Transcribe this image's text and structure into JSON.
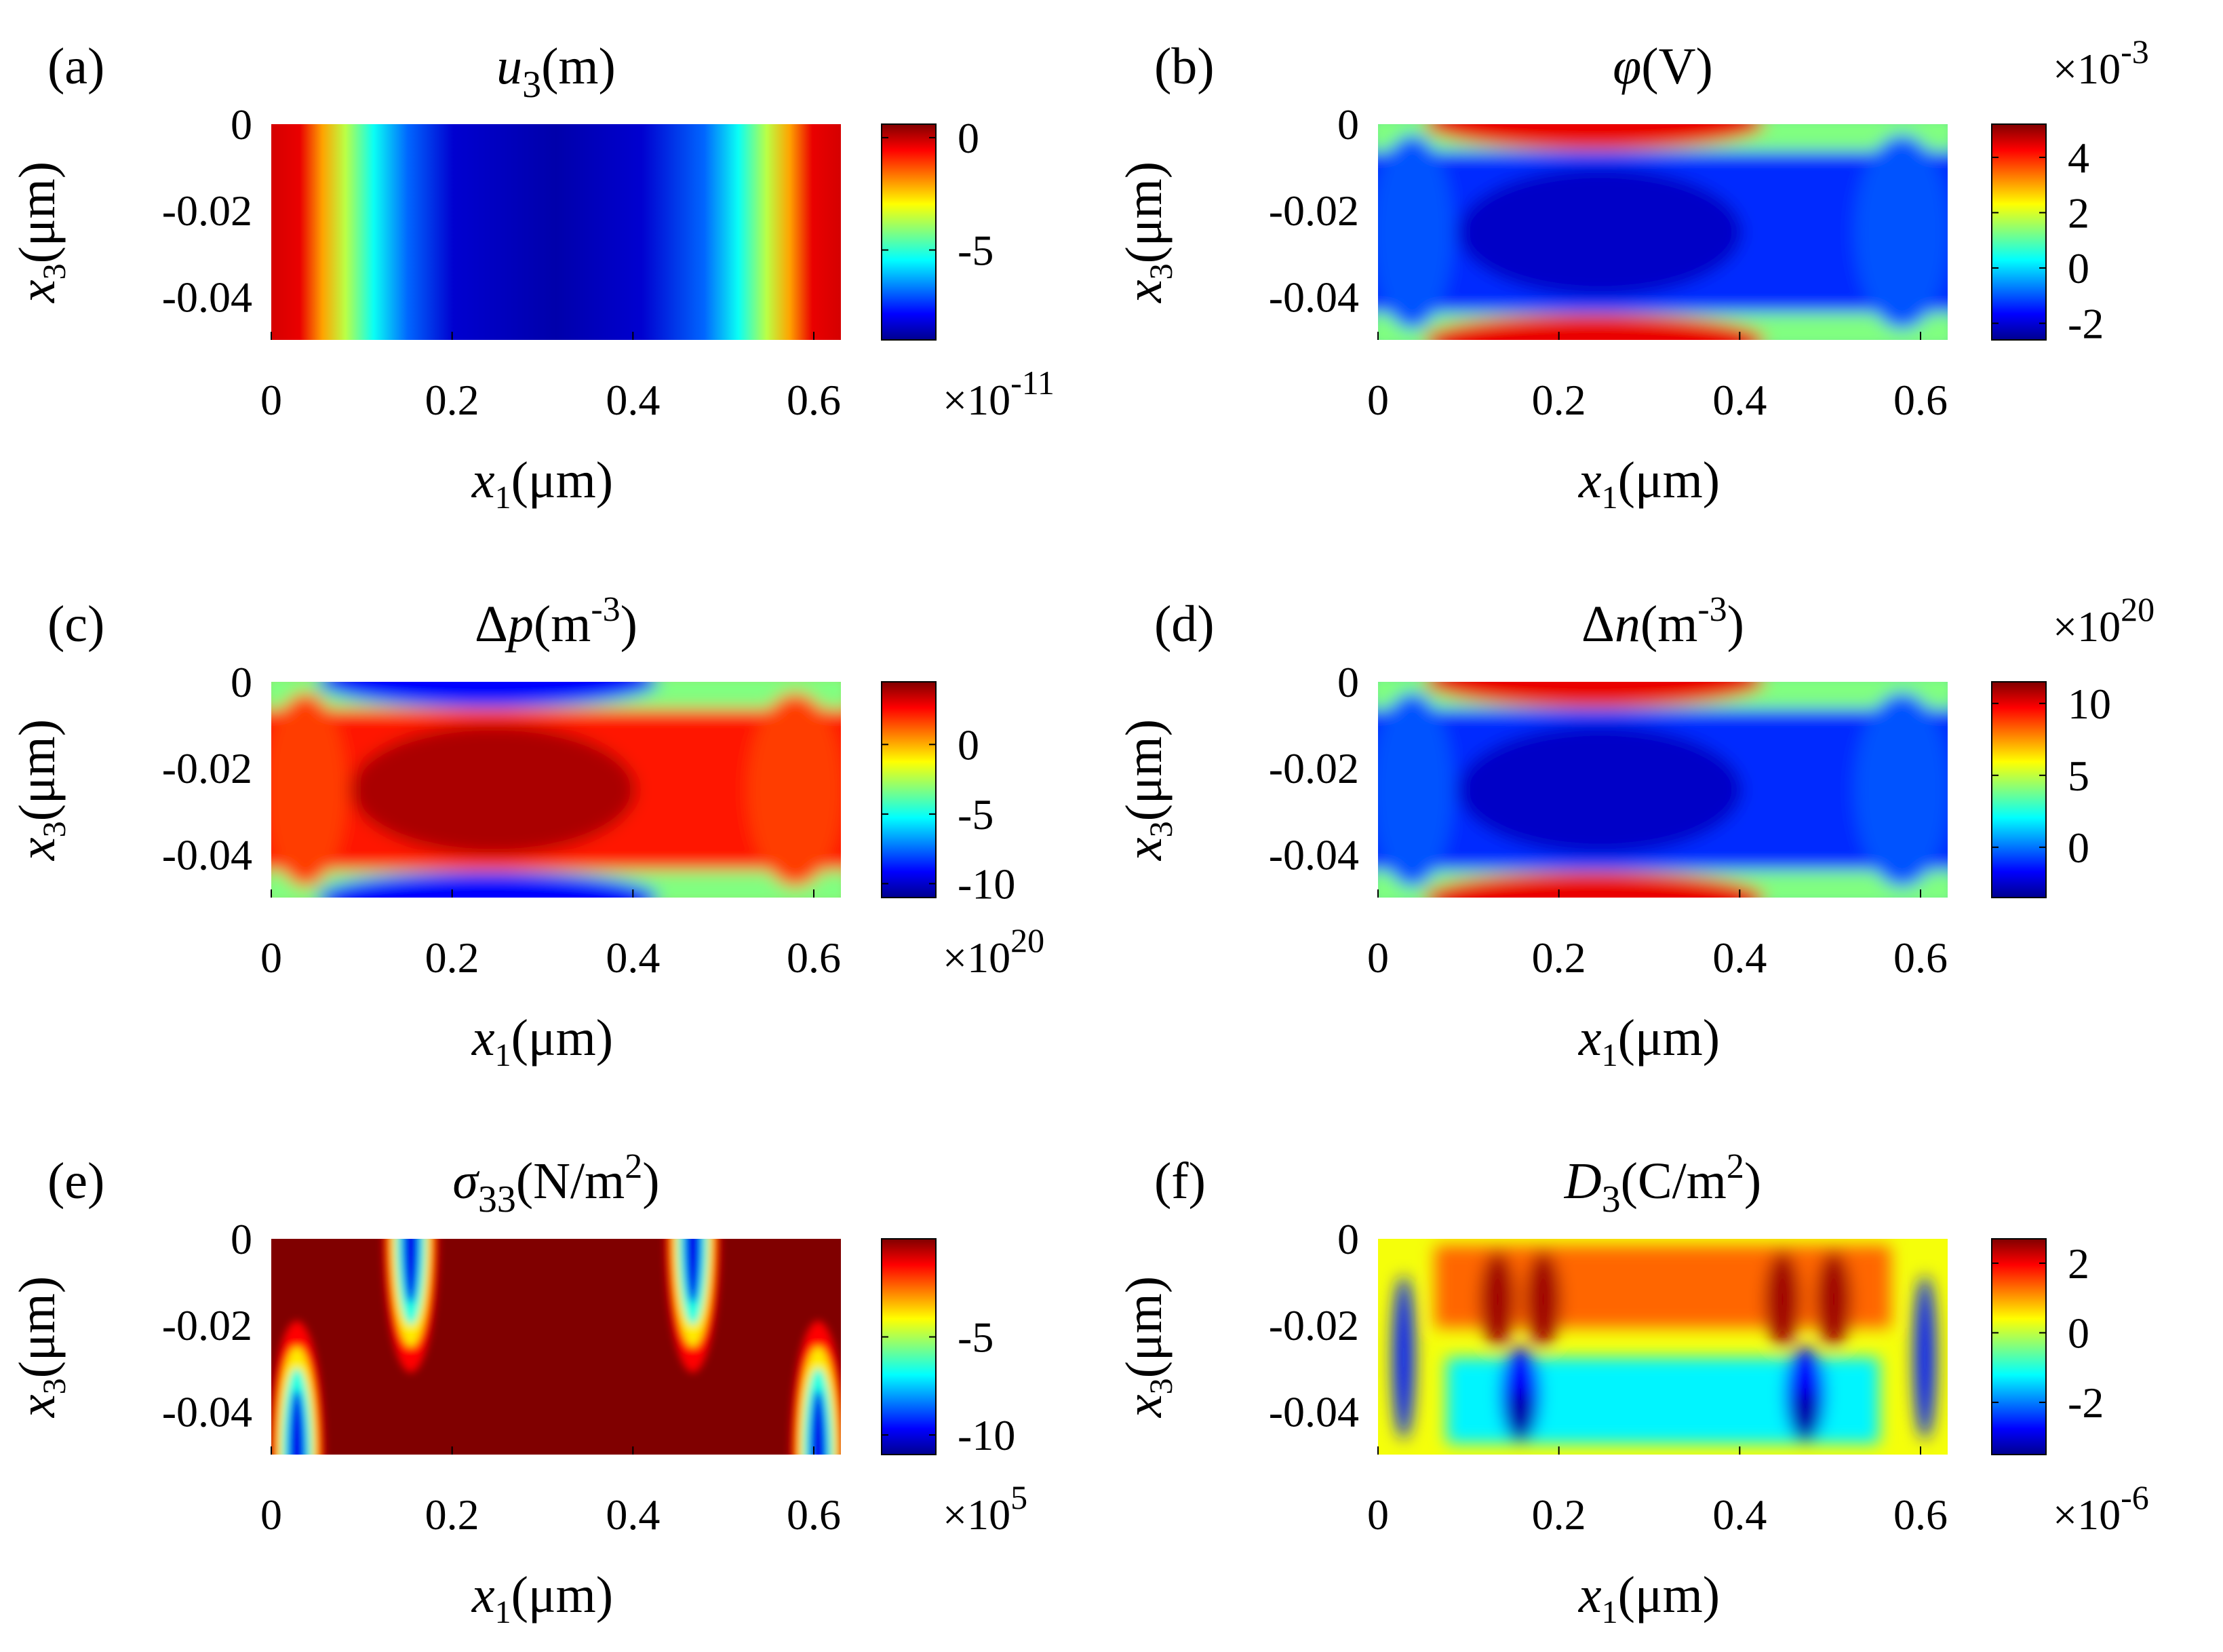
{
  "chart_data": [
    {
      "panel": "(a)",
      "type": "heatmap",
      "title": "u3(m)",
      "title_main": "u",
      "title_sub": "3",
      "title_rest": "(m)",
      "title_italic": true,
      "title_symbol": false,
      "xlabel": "x1(μm)",
      "ylabel": "x3(μm)",
      "xlim": [
        0,
        0.63
      ],
      "ylim": [
        -0.05,
        0
      ],
      "xticks": [
        "0",
        "0.2",
        "0.4",
        "0.6"
      ],
      "yticks": [
        "0",
        "-0.02",
        "-0.04"
      ],
      "xtick_values": [
        0,
        0.2,
        0.4,
        0.6
      ],
      "ytick_values": [
        0,
        -0.02,
        -0.04
      ],
      "colorbar": {
        "min": -9,
        "max": 0.6,
        "ticks": [
          "0",
          "-5"
        ],
        "tick_values": [
          0,
          -5
        ],
        "multiplier": "×10",
        "exponent": "-11",
        "multiplier_position": "bottom"
      },
      "pattern": "vertical-bands",
      "field_peak": "blue-center",
      "edge": "red"
    },
    {
      "panel": "(b)",
      "type": "heatmap",
      "title": "φ(V)",
      "title_main": "φ",
      "title_sub": "",
      "title_rest": "(V)",
      "title_italic": true,
      "title_symbol": false,
      "xlabel": "x1(μm)",
      "ylabel": "x3(μm)",
      "xlim": [
        0,
        0.63
      ],
      "ylim": [
        -0.05,
        0
      ],
      "xticks": [
        "0",
        "0.2",
        "0.4",
        "0.6"
      ],
      "yticks": [
        "0",
        "-0.02",
        "-0.04"
      ],
      "xtick_values": [
        0,
        0.2,
        0.4,
        0.6
      ],
      "ytick_values": [
        0,
        -0.02,
        -0.04
      ],
      "colorbar": {
        "min": -2.6,
        "max": 5.2,
        "ticks": [
          "4",
          "2",
          "0",
          "-2"
        ],
        "tick_values": [
          4,
          2,
          0,
          -2
        ],
        "multiplier": "×10",
        "exponent": "-3",
        "multiplier_position": "top"
      },
      "pattern": "center-blob",
      "field_peak": "blue-center",
      "edge": "red-top-bottom"
    },
    {
      "panel": "(c)",
      "type": "heatmap",
      "title": "Δp(m^-3)",
      "title_main": "p",
      "title_sub": "",
      "title_rest": "(m",
      "title_sup": "-3",
      "title_close": ")",
      "title_italic": true,
      "title_symbol": true,
      "xlabel": "x1(μm)",
      "ylabel": "x3(μm)",
      "xlim": [
        0,
        0.63
      ],
      "ylim": [
        -0.05,
        0
      ],
      "xticks": [
        "0",
        "0.2",
        "0.4",
        "0.6"
      ],
      "yticks": [
        "0",
        "-0.02",
        "-0.04"
      ],
      "xtick_values": [
        0,
        0.2,
        0.4,
        0.6
      ],
      "ytick_values": [
        0,
        -0.02,
        -0.04
      ],
      "colorbar": {
        "min": -11,
        "max": 4.5,
        "ticks": [
          "0",
          "-5",
          "-10"
        ],
        "tick_values": [
          0,
          -5,
          -10
        ],
        "multiplier": "×10",
        "exponent": "20",
        "multiplier_position": "bottom"
      },
      "pattern": "center-blob",
      "field_peak": "red-center",
      "edge": "blue-top-bottom"
    },
    {
      "panel": "(d)",
      "type": "heatmap",
      "title": "Δn(m^-3)",
      "title_main": "n",
      "title_sub": "",
      "title_rest": "(m",
      "title_sup": "-3",
      "title_close": ")",
      "title_italic": true,
      "title_symbol": true,
      "xlabel": "x1(μm)",
      "ylabel": "x3(μm)",
      "xlim": [
        0,
        0.63
      ],
      "ylim": [
        -0.05,
        0
      ],
      "xticks": [
        "0",
        "0.2",
        "0.4",
        "0.6"
      ],
      "yticks": [
        "0",
        "-0.02",
        "-0.04"
      ],
      "xtick_values": [
        0,
        0.2,
        0.4,
        0.6
      ],
      "ytick_values": [
        0,
        -0.02,
        -0.04
      ],
      "colorbar": {
        "min": -3.5,
        "max": 11.5,
        "ticks": [
          "10",
          "5",
          "0"
        ],
        "tick_values": [
          10,
          5,
          0
        ],
        "multiplier": "×10",
        "exponent": "20",
        "multiplier_position": "top"
      },
      "pattern": "center-blob",
      "field_peak": "blue-center",
      "edge": "red-top-bottom"
    },
    {
      "panel": "(e)",
      "type": "heatmap",
      "title": "σ33(N/m^2)",
      "title_main": "σ",
      "title_sub": "33",
      "title_rest": "(N/m",
      "title_sup": "2",
      "title_close": ")",
      "title_italic": true,
      "title_symbol": false,
      "xlabel": "x1(μm)",
      "ylabel": "x3(μm)",
      "xlim": [
        0,
        0.63
      ],
      "ylim": [
        -0.05,
        0
      ],
      "xticks": [
        "0",
        "0.2",
        "0.4",
        "0.6"
      ],
      "yticks": [
        "0",
        "-0.02",
        "-0.04"
      ],
      "xtick_values": [
        0,
        0.2,
        0.4,
        0.6
      ],
      "ytick_values": [
        0,
        -0.02,
        -0.04
      ],
      "colorbar": {
        "min": -11,
        "max": 0,
        "ticks": [
          "-5",
          "-10"
        ],
        "tick_values": [
          -5,
          -10
        ],
        "multiplier": "×10",
        "exponent": "5",
        "multiplier_position": "bottom"
      },
      "pattern": "stress-spots",
      "field_peak": "blue-spots",
      "edge": "dark-red"
    },
    {
      "panel": "(f)",
      "type": "heatmap",
      "title": "D3(C/m^2)",
      "title_main": "D",
      "title_sub": "3",
      "title_rest": "(C/m",
      "title_sup": "2",
      "title_close": ")",
      "title_italic": true,
      "title_symbol": false,
      "xlabel": "x1(μm)",
      "ylabel": "x3(μm)",
      "xlim": [
        0,
        0.63
      ],
      "ylim": [
        -0.05,
        0
      ],
      "xticks": [
        "0",
        "0.2",
        "0.4",
        "0.6"
      ],
      "yticks": [
        "0",
        "-0.02",
        "-0.04"
      ],
      "xtick_values": [
        0,
        0.2,
        0.4,
        0.6
      ],
      "ytick_values": [
        0,
        -0.02,
        -0.04
      ],
      "colorbar": {
        "min": -3.5,
        "max": 2.7,
        "ticks": [
          "2",
          "0",
          "-2"
        ],
        "tick_values": [
          2,
          0,
          -2
        ],
        "multiplier": "×10",
        "exponent": "-6",
        "multiplier_position": "bottom"
      },
      "pattern": "displacement-field",
      "field_peak": "mixed",
      "edge": "yellow"
    }
  ],
  "labels": {
    "x_axis_main": "x",
    "x_axis_sub": "1",
    "x_axis_unit": "(μm)",
    "y_axis_main": "x",
    "y_axis_sub": "3",
    "y_axis_unit": "(μm)",
    "delta_symbol": "Δ"
  }
}
